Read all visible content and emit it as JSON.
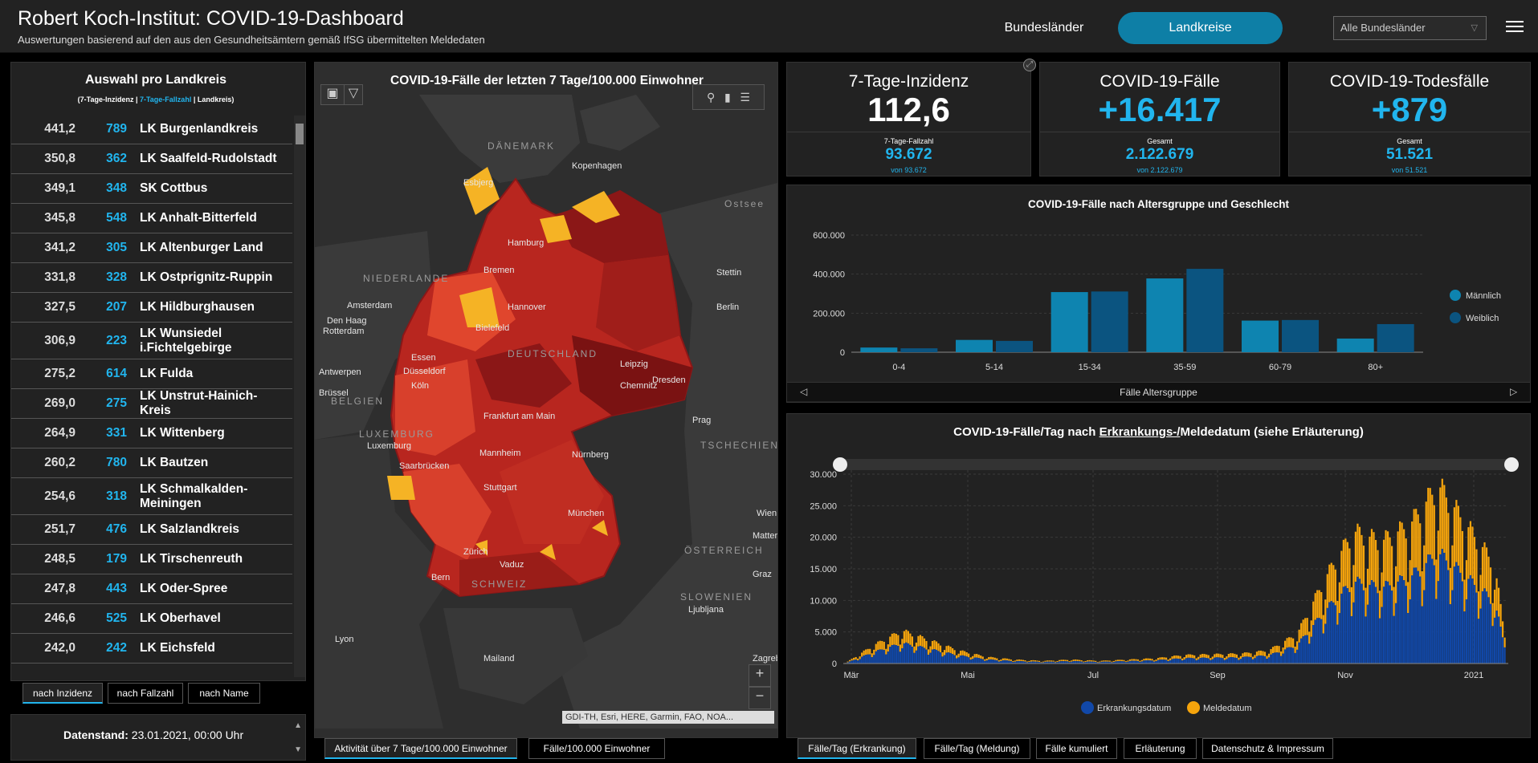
{
  "header": {
    "title": "Robert Koch-Institut: COVID-19-Dashboard",
    "subtitle": "Auswertungen basierend auf den aus den Gesundheitsämtern gemäß IfSG übermittelten Meldedaten",
    "btn_bundeslaender": "Bundesländer",
    "btn_landkreise": "Landkreise",
    "select_value": "Alle Bundesländer"
  },
  "left": {
    "title": "Auswahl pro Landkreis",
    "legend_a": "(7-Tage-Inzidenz | ",
    "legend_b": "7-Tage-Fallzahl",
    "legend_c": " | Landkreis)",
    "rows": [
      {
        "inz": "441,2",
        "fz": "789",
        "name": "LK Burgenlandkreis"
      },
      {
        "inz": "350,8",
        "fz": "362",
        "name": "LK Saalfeld-Rudolstadt"
      },
      {
        "inz": "349,1",
        "fz": "348",
        "name": "SK Cottbus"
      },
      {
        "inz": "345,8",
        "fz": "548",
        "name": "LK Anhalt-Bitterfeld"
      },
      {
        "inz": "341,2",
        "fz": "305",
        "name": "LK Altenburger Land"
      },
      {
        "inz": "331,8",
        "fz": "328",
        "name": "LK Ostprignitz-Ruppin"
      },
      {
        "inz": "327,5",
        "fz": "207",
        "name": "LK Hildburghausen"
      },
      {
        "inz": "306,9",
        "fz": "223",
        "name": "LK Wunsiedel i.Fichtelgebirge"
      },
      {
        "inz": "275,2",
        "fz": "614",
        "name": "LK Fulda"
      },
      {
        "inz": "269,0",
        "fz": "275",
        "name": "LK Unstrut-Hainich-Kreis"
      },
      {
        "inz": "264,9",
        "fz": "331",
        "name": "LK Wittenberg"
      },
      {
        "inz": "260,2",
        "fz": "780",
        "name": "LK Bautzen"
      },
      {
        "inz": "254,6",
        "fz": "318",
        "name": "LK Schmalkalden-Meiningen"
      },
      {
        "inz": "251,7",
        "fz": "476",
        "name": "LK Salzlandkreis"
      },
      {
        "inz": "248,5",
        "fz": "179",
        "name": "LK Tirschenreuth"
      },
      {
        "inz": "247,8",
        "fz": "443",
        "name": "LK Oder-Spree"
      },
      {
        "inz": "246,6",
        "fz": "525",
        "name": "LK Oberhavel"
      },
      {
        "inz": "242,0",
        "fz": "242",
        "name": "LK Eichsfeld"
      }
    ],
    "tabs": [
      "nach Inzidenz",
      "nach Fallzahl",
      "nach Name"
    ],
    "datestand_label": "Datenstand:",
    "datestand_value": "23.01.2021, 00:00 Uhr"
  },
  "map": {
    "title": "COVID-19-Fälle der letzten 7 Tage/100.000 Einwohner",
    "labels": [
      {
        "t": "DÄNEMARK",
        "cls": "country"
      },
      {
        "t": "Kopenhagen",
        "cls": "city"
      },
      {
        "t": "Esbjerg",
        "cls": "city"
      },
      {
        "t": "Ostsee",
        "cls": "country"
      },
      {
        "t": "Hamburg",
        "cls": "city"
      },
      {
        "t": "Bremen",
        "cls": "city"
      },
      {
        "t": "Stettin",
        "cls": "city"
      },
      {
        "t": "NIEDERLANDE",
        "cls": "country"
      },
      {
        "t": "Amsterdam",
        "cls": "city"
      },
      {
        "t": "Hannover",
        "cls": "city"
      },
      {
        "t": "Berlin",
        "cls": "city"
      },
      {
        "t": "Den Haag",
        "cls": "city"
      },
      {
        "t": "Rotterdam",
        "cls": "city"
      },
      {
        "t": "Bielefeld",
        "cls": "city"
      },
      {
        "t": "Essen",
        "cls": "city"
      },
      {
        "t": "DEUTSCHLAND",
        "cls": "country"
      },
      {
        "t": "Düsseldorf",
        "cls": "city"
      },
      {
        "t": "Leipzig",
        "cls": "city"
      },
      {
        "t": "Antwerpen",
        "cls": "city"
      },
      {
        "t": "Köln",
        "cls": "city"
      },
      {
        "t": "Dresden",
        "cls": "city"
      },
      {
        "t": "Brüssel",
        "cls": "city"
      },
      {
        "t": "Chemnitz",
        "cls": "city"
      },
      {
        "t": "BELGIEN",
        "cls": "country"
      },
      {
        "t": "Frankfurt am Main",
        "cls": "city"
      },
      {
        "t": "Prag",
        "cls": "city"
      },
      {
        "t": "LUXEMBURG",
        "cls": "country"
      },
      {
        "t": "Luxemburg",
        "cls": "city"
      },
      {
        "t": "TSCHECHIEN",
        "cls": "country"
      },
      {
        "t": "Mannheim",
        "cls": "city"
      },
      {
        "t": "Nürnberg",
        "cls": "city"
      },
      {
        "t": "Saarbrücken",
        "cls": "city"
      },
      {
        "t": "Stuttgart",
        "cls": "city"
      },
      {
        "t": "Wien",
        "cls": "city"
      },
      {
        "t": "München",
        "cls": "city"
      },
      {
        "t": "Mattersburg",
        "cls": "city"
      },
      {
        "t": "Zürich",
        "cls": "city"
      },
      {
        "t": "ÖSTERREICH",
        "cls": "country"
      },
      {
        "t": "Vaduz",
        "cls": "city"
      },
      {
        "t": "Graz",
        "cls": "city"
      },
      {
        "t": "Bern",
        "cls": "city"
      },
      {
        "t": "SCHWEIZ",
        "cls": "country"
      },
      {
        "t": "SLOWENIEN",
        "cls": "country"
      },
      {
        "t": "Ljubljana",
        "cls": "city"
      },
      {
        "t": "Lyon",
        "cls": "city"
      },
      {
        "t": "Mailand",
        "cls": "city"
      },
      {
        "t": "Zagreb",
        "cls": "city"
      }
    ],
    "attribution": "GDI-TH, Esri, HERE, Garmin, FAO, NOA...",
    "tabs": [
      "Aktivität über 7 Tage/100.000 Einwohner",
      "Fälle/100.000 Einwohner"
    ],
    "colors": {
      "dark": "#8b1717",
      "mid": "#d0382a",
      "light": "#e85a2c",
      "yellow": "#f5b325",
      "sea": "#2e2e2e",
      "land": "#3a3a3a"
    }
  },
  "kpi": [
    {
      "title": "7-Tage-Inzidenz",
      "value": "112,6",
      "sub_label": "7-Tage-Fallzahl",
      "sub_value": "93.672",
      "sub_note": "von 93.672",
      "value_color": "#ffffff"
    },
    {
      "title": "COVID-19-Fälle",
      "value": "+16.417",
      "sub_label": "Gesamt",
      "sub_value": "2.122.679",
      "sub_note": "von 2.122.679",
      "value_color": "#21b5ee"
    },
    {
      "title": "COVID-19-Todesfälle",
      "value": "+879",
      "sub_label": "Gesamt",
      "sub_value": "51.521",
      "sub_note": "von 51.521",
      "value_color": "#21b5ee"
    }
  ],
  "age_chart": {
    "title": "COVID-19-Fälle nach Altersgruppe und Geschlecht",
    "xlabel_footer": "Fälle Altersgruppe",
    "chart_data": {
      "type": "bar",
      "categories": [
        "0-4",
        "5-14",
        "15-34",
        "35-59",
        "60-79",
        "80+"
      ],
      "series": [
        {
          "name": "Männlich",
          "color": "#0e84b0",
          "values": [
            24000,
            63000,
            308000,
            378000,
            162000,
            70000
          ]
        },
        {
          "name": "Weiblich",
          "color": "#0b5480",
          "values": [
            20000,
            58000,
            311000,
            427000,
            165000,
            144000
          ]
        }
      ],
      "ylim": [
        0,
        600000
      ],
      "yticks": [
        "0",
        "200.000",
        "400.000",
        "600.000"
      ],
      "legend": "right"
    }
  },
  "daily_chart": {
    "title_a": "COVID-19-Fälle/Tag nach ",
    "title_u": "Erkrankungs-/",
    "title_b": "Meldedatum (siehe Erläuterung)",
    "chart_data": {
      "type": "bar",
      "x_ticks": [
        "Mär",
        "Mai",
        "Jul",
        "Sep",
        "Nov",
        "2021"
      ],
      "yticks": [
        "0",
        "5.000",
        "10.000",
        "15.000",
        "20.000",
        "25.000",
        "30.000"
      ],
      "ylim": [
        0,
        30000
      ],
      "series": [
        {
          "name": "Erkrankungsdatum",
          "color": "#1148a8"
        },
        {
          "name": "Meldedatum",
          "color": "#f5a40c"
        }
      ],
      "weekly_totals_approx": [
        {
          "date": "2020-03-01",
          "v": 100
        },
        {
          "date": "2020-03-15",
          "v": 2800
        },
        {
          "date": "2020-03-29",
          "v": 5000
        },
        {
          "date": "2020-04-12",
          "v": 3500
        },
        {
          "date": "2020-04-26",
          "v": 2000
        },
        {
          "date": "2020-05-10",
          "v": 1000
        },
        {
          "date": "2020-05-24",
          "v": 600
        },
        {
          "date": "2020-06-07",
          "v": 400
        },
        {
          "date": "2020-06-21",
          "v": 600
        },
        {
          "date": "2020-07-05",
          "v": 400
        },
        {
          "date": "2020-07-19",
          "v": 600
        },
        {
          "date": "2020-08-02",
          "v": 800
        },
        {
          "date": "2020-08-16",
          "v": 1300
        },
        {
          "date": "2020-08-30",
          "v": 1400
        },
        {
          "date": "2020-09-13",
          "v": 1500
        },
        {
          "date": "2020-09-27",
          "v": 2000
        },
        {
          "date": "2020-10-11",
          "v": 4500
        },
        {
          "date": "2020-10-25",
          "v": 13000
        },
        {
          "date": "2020-11-08",
          "v": 20000
        },
        {
          "date": "2020-11-22",
          "v": 18500
        },
        {
          "date": "2020-12-06",
          "v": 21000
        },
        {
          "date": "2020-12-20",
          "v": 27000
        },
        {
          "date": "2021-01-03",
          "v": 21000
        },
        {
          "date": "2021-01-17",
          "v": 15000
        }
      ],
      "legend": "bottom"
    },
    "tabs": [
      "Fälle/Tag (Erkrankung)",
      "Fälle/Tag (Meldung)",
      "Fälle kumuliert",
      "Erläuterung",
      "Datenschutz & Impressum"
    ]
  }
}
